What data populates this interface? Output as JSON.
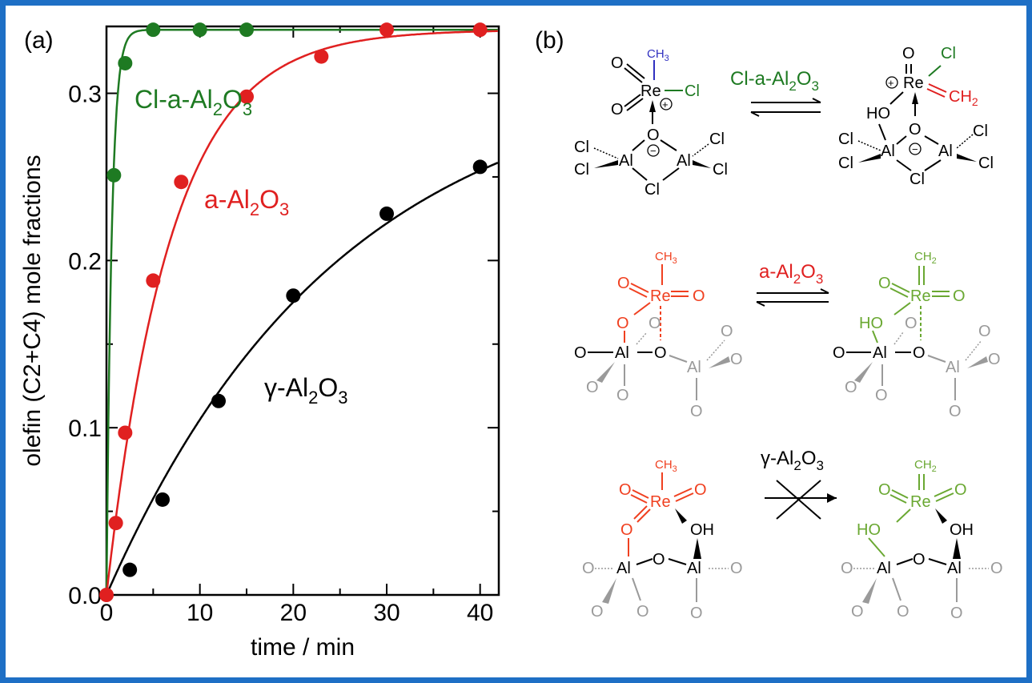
{
  "panels": {
    "a_label": "(a)",
    "b_label": "(b)"
  },
  "colors": {
    "frame": "#1e6fc5",
    "green": "#1e7a22",
    "red": "#e02020",
    "black": "#000000",
    "scheme_green": "#6aa832",
    "scheme_red": "#f04020",
    "scheme_grey": "#9a9a9a",
    "methyl_blue": "#3030c0"
  },
  "chart_data": {
    "type": "scatter",
    "xlabel": "time / min",
    "ylabel": "olefin (C2+C4) mole fractions",
    "xlim": [
      0,
      42
    ],
    "ylim": [
      0,
      0.34
    ],
    "x_ticks": [
      0,
      10,
      20,
      30,
      40
    ],
    "x_tick_labels": [
      "0",
      "10",
      "20",
      "30",
      "40"
    ],
    "y_ticks": [
      0.0,
      0.1,
      0.2,
      0.3
    ],
    "y_tick_labels": [
      "0.0",
      "0.1",
      "0.2",
      "0.3"
    ],
    "series": [
      {
        "name": "Cl-a-Al2O3",
        "label_main": "Cl-a-Al",
        "label_sub1": "2",
        "label_mid": "O",
        "label_sub2": "3",
        "color": "#1e7a22",
        "points": [
          [
            0.8,
            0.251
          ],
          [
            2.0,
            0.318
          ],
          [
            5.0,
            0.338
          ],
          [
            10.0,
            0.338
          ],
          [
            15.0,
            0.338
          ]
        ],
        "fit": {
          "ymax": 0.338,
          "k": 1.8
        }
      },
      {
        "name": "a-Al2O3",
        "label_main": "a-Al",
        "label_sub1": "2",
        "label_mid": "O",
        "label_sub2": "3",
        "color": "#e02020",
        "points": [
          [
            0.0,
            0.0
          ],
          [
            1.0,
            0.043
          ],
          [
            2.0,
            0.097
          ],
          [
            5.0,
            0.188
          ],
          [
            8.0,
            0.247
          ],
          [
            15.0,
            0.298
          ],
          [
            23.0,
            0.322
          ],
          [
            30.0,
            0.338
          ],
          [
            40.0,
            0.338
          ]
        ],
        "fit": {
          "ymax": 0.338,
          "k": 0.145
        }
      },
      {
        "name": "γ-Al2O3",
        "label_main": "γ-Al",
        "label_sub1": "2",
        "label_mid": "O",
        "label_sub2": "3",
        "color": "#000000",
        "points": [
          [
            2.5,
            0.015
          ],
          [
            6.0,
            0.057
          ],
          [
            12.0,
            0.116
          ],
          [
            20.0,
            0.179
          ],
          [
            30.0,
            0.228
          ],
          [
            40.0,
            0.256
          ]
        ],
        "fit": {
          "ymax": 0.318,
          "k": 0.04
        }
      }
    ]
  },
  "scheme": {
    "row1": {
      "arrow_label_main": "Cl-a-Al",
      "arrow_label_sub1": "2",
      "arrow_label_mid": "O",
      "arrow_label_sub2": "3",
      "left": {
        "methyl": "CH",
        "methyl_sub": "3",
        "re": "Re",
        "o": "O",
        "cl": "Cl",
        "al": "Al"
      },
      "right": {
        "ch2": "CH",
        "ch2_sub": "2",
        "re": "Re",
        "o": "O",
        "ho": "HO",
        "cl": "Cl",
        "al": "Al"
      }
    },
    "row2": {
      "arrow_label_main": "a-Al",
      "arrow_label_sub1": "2",
      "arrow_label_mid": "O",
      "arrow_label_sub2": "3",
      "left": {
        "methyl": "CH",
        "methyl_sub": "3",
        "re": "Re",
        "o": "O",
        "al": "Al"
      },
      "right": {
        "ch2": "CH",
        "ch2_sub": "2",
        "re": "Re",
        "o": "O",
        "ho": "HO",
        "al": "Al"
      }
    },
    "row3": {
      "arrow_label_main": "γ-Al",
      "arrow_label_sub1": "2",
      "arrow_label_mid": "O",
      "arrow_label_sub2": "3",
      "left": {
        "methyl": "CH",
        "methyl_sub": "3",
        "re": "Re",
        "o": "O",
        "oh": "OH",
        "al": "Al"
      },
      "right": {
        "ch2": "CH",
        "ch2_sub": "2",
        "re": "Re",
        "o": "O",
        "oh": "OH",
        "ho": "HO",
        "al": "Al"
      }
    }
  }
}
